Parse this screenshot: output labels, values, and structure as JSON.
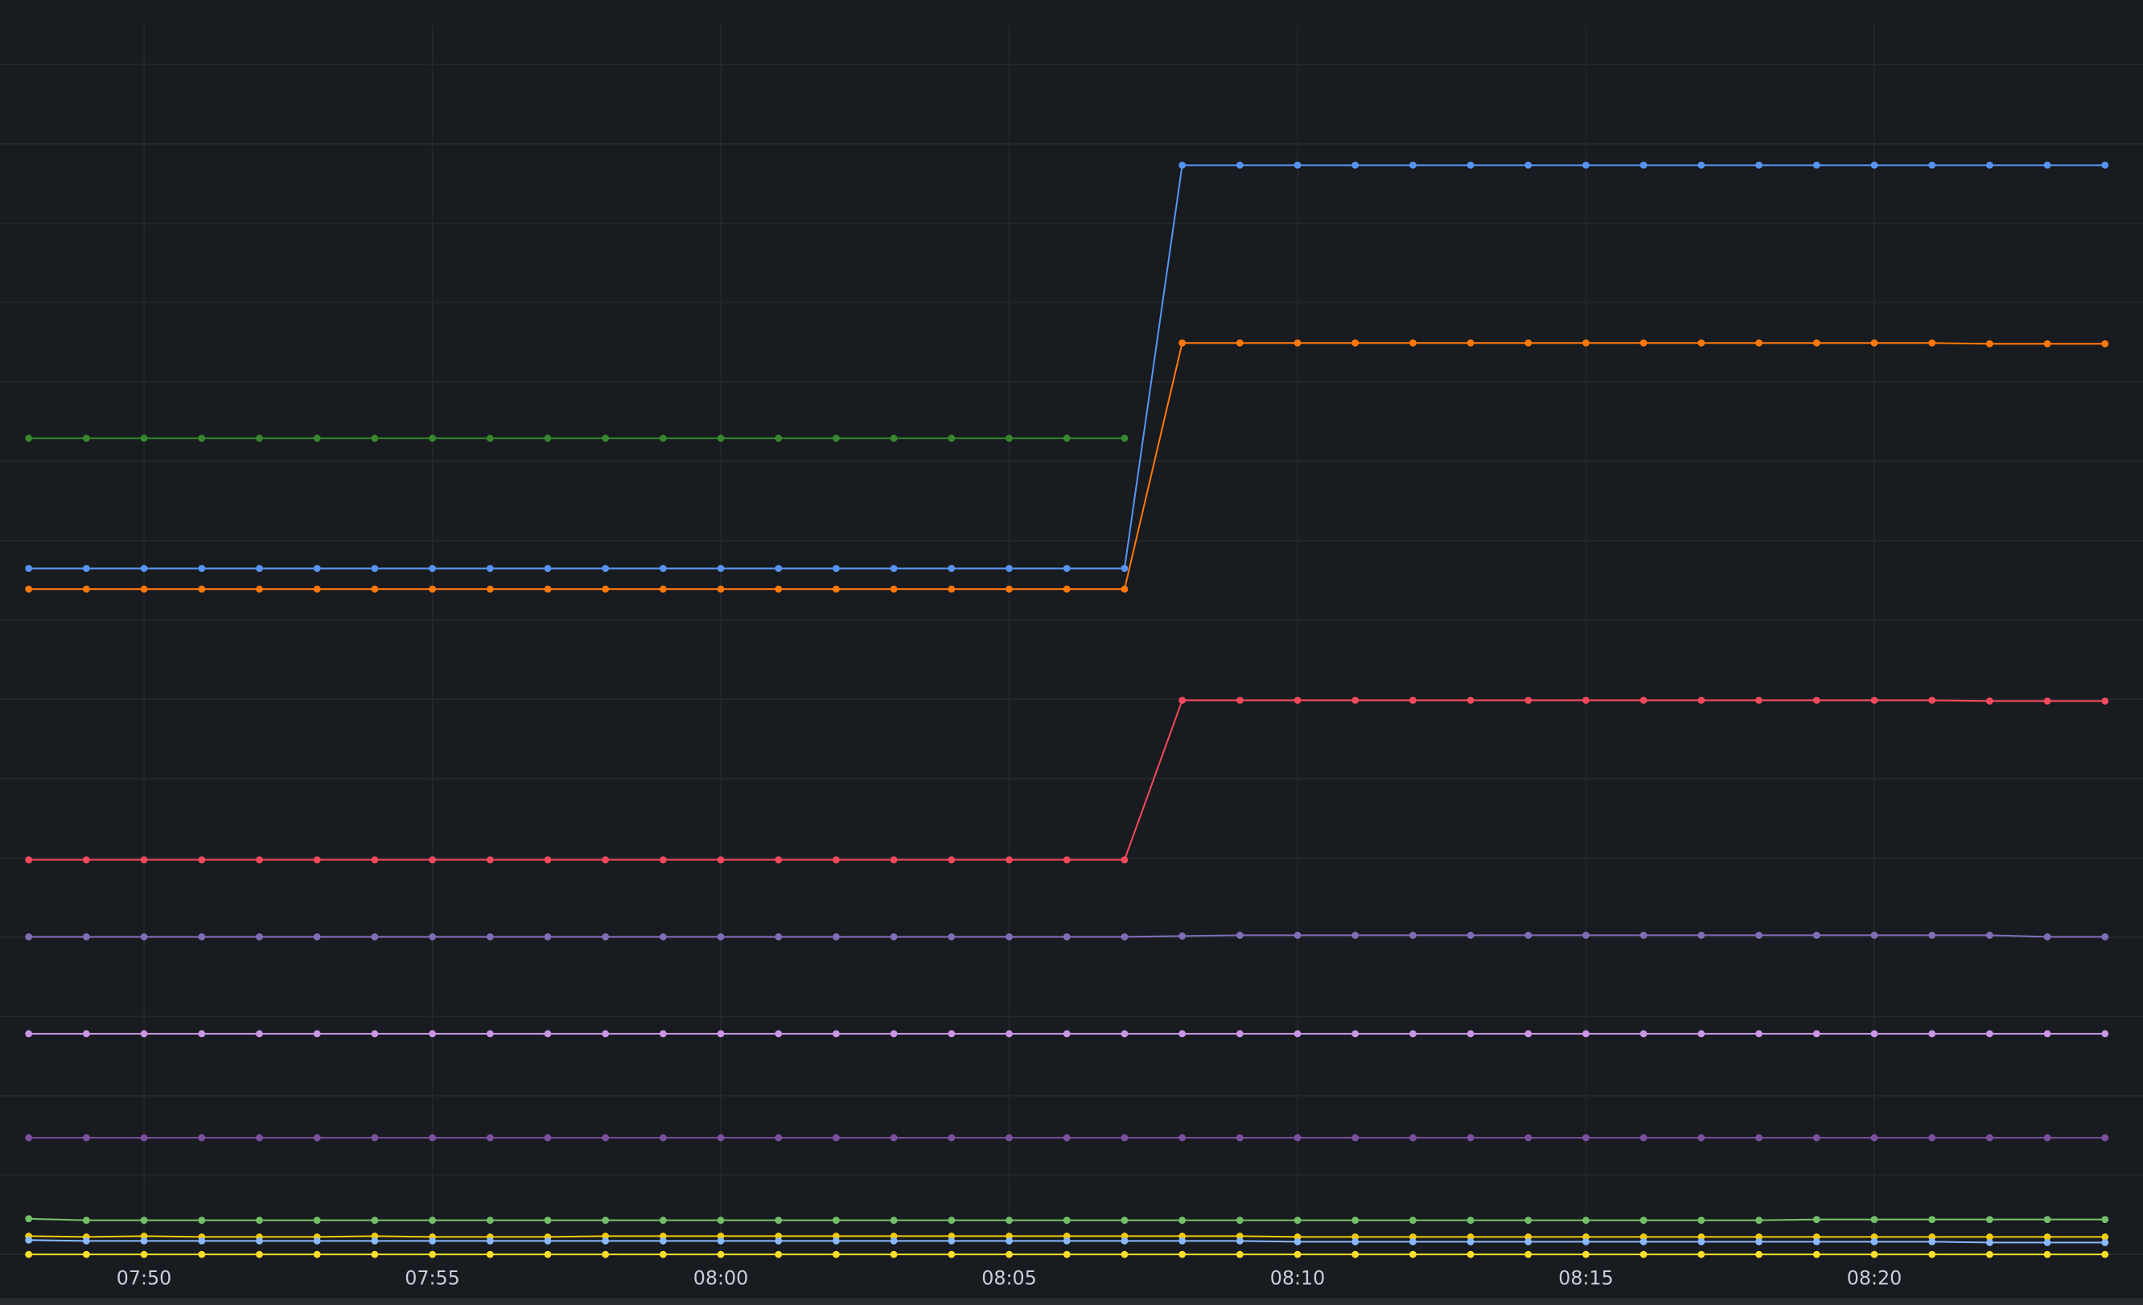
{
  "chart_data": {
    "type": "line",
    "title": "",
    "xlabel": "",
    "ylabel": "",
    "grid": true,
    "legend": "none",
    "ylim": [
      0,
      15.8
    ],
    "x": [
      "07:48",
      "07:49",
      "07:50",
      "07:51",
      "07:52",
      "07:53",
      "07:54",
      "07:55",
      "07:56",
      "07:57",
      "07:58",
      "07:59",
      "08:00",
      "08:01",
      "08:02",
      "08:03",
      "08:04",
      "08:05",
      "08:06",
      "08:07",
      "08:08",
      "08:09",
      "08:10",
      "08:11",
      "08:12",
      "08:13",
      "08:14",
      "08:15",
      "08:16",
      "08:17",
      "08:18",
      "08:19",
      "08:20",
      "08:21",
      "08:22",
      "08:23",
      "08:24"
    ],
    "x_ticks": [
      "07:50",
      "07:55",
      "08:00",
      "08:05",
      "08:10",
      "08:15",
      "08:20"
    ],
    "background": "#181b1f",
    "grid_color": "#24272d",
    "series": [
      {
        "color": "#37872d",
        "values": [
          10.28,
          10.28,
          10.28,
          10.28,
          10.28,
          10.28,
          10.28,
          10.28,
          10.28,
          10.28,
          10.28,
          10.28,
          10.28,
          10.28,
          10.28,
          10.28,
          10.28,
          10.28,
          10.28,
          10.28,
          null,
          null,
          null,
          null,
          null,
          null,
          null,
          null,
          null,
          null,
          null,
          null,
          null,
          null,
          null,
          null,
          null
        ]
      },
      {
        "color": "#5794f2",
        "values": [
          8.64,
          8.64,
          8.64,
          8.64,
          8.64,
          8.64,
          8.64,
          8.64,
          8.64,
          8.64,
          8.64,
          8.64,
          8.64,
          8.64,
          8.64,
          8.64,
          8.64,
          8.64,
          8.64,
          8.64,
          13.72,
          13.72,
          13.72,
          13.72,
          13.72,
          13.72,
          13.72,
          13.72,
          13.72,
          13.72,
          13.72,
          13.72,
          13.72,
          13.72,
          13.72,
          13.72,
          13.72
        ]
      },
      {
        "color": "#ff780a",
        "values": [
          8.38,
          8.38,
          8.38,
          8.38,
          8.38,
          8.38,
          8.38,
          8.38,
          8.38,
          8.38,
          8.38,
          8.38,
          8.38,
          8.38,
          8.38,
          8.38,
          8.38,
          8.38,
          8.38,
          8.38,
          11.48,
          11.48,
          11.48,
          11.48,
          11.48,
          11.48,
          11.48,
          11.48,
          11.48,
          11.48,
          11.48,
          11.48,
          11.48,
          11.48,
          11.47,
          11.47,
          11.47
        ]
      },
      {
        "color": "#f2495c",
        "values": [
          4.97,
          4.97,
          4.97,
          4.97,
          4.97,
          4.97,
          4.97,
          4.97,
          4.97,
          4.97,
          4.97,
          4.97,
          4.97,
          4.97,
          4.97,
          4.97,
          4.97,
          4.97,
          4.97,
          4.97,
          6.98,
          6.98,
          6.98,
          6.98,
          6.98,
          6.98,
          6.98,
          6.98,
          6.98,
          6.98,
          6.98,
          6.98,
          6.98,
          6.98,
          6.97,
          6.97,
          6.97
        ]
      },
      {
        "color": "#806eb7",
        "values": [
          4.0,
          4.0,
          4.0,
          4.0,
          4.0,
          4.0,
          4.0,
          4.0,
          4.0,
          4.0,
          4.0,
          4.0,
          4.0,
          4.0,
          4.0,
          4.0,
          4.0,
          4.0,
          4.0,
          4.0,
          4.01,
          4.02,
          4.02,
          4.02,
          4.02,
          4.02,
          4.02,
          4.02,
          4.02,
          4.02,
          4.02,
          4.02,
          4.02,
          4.02,
          4.02,
          4.0,
          4.0
        ]
      },
      {
        "color": "#ca95e5",
        "values": [
          2.78,
          2.78,
          2.78,
          2.78,
          2.78,
          2.78,
          2.78,
          2.78,
          2.78,
          2.78,
          2.78,
          2.78,
          2.78,
          2.78,
          2.78,
          2.78,
          2.78,
          2.78,
          2.78,
          2.78,
          2.78,
          2.78,
          2.78,
          2.78,
          2.78,
          2.78,
          2.78,
          2.78,
          2.78,
          2.78,
          2.78,
          2.78,
          2.78,
          2.78,
          2.78,
          2.78,
          2.78
        ]
      },
      {
        "color": "#7c4f9f",
        "values": [
          1.47,
          1.47,
          1.47,
          1.47,
          1.47,
          1.47,
          1.47,
          1.47,
          1.47,
          1.47,
          1.47,
          1.47,
          1.47,
          1.47,
          1.47,
          1.47,
          1.47,
          1.47,
          1.47,
          1.47,
          1.47,
          1.47,
          1.47,
          1.47,
          1.47,
          1.47,
          1.47,
          1.47,
          1.47,
          1.47,
          1.47,
          1.47,
          1.47,
          1.47,
          1.47,
          1.47,
          1.47
        ]
      },
      {
        "color": "#73bf69",
        "values": [
          0.45,
          0.43,
          0.43,
          0.43,
          0.43,
          0.43,
          0.43,
          0.43,
          0.43,
          0.43,
          0.43,
          0.43,
          0.43,
          0.43,
          0.43,
          0.43,
          0.43,
          0.43,
          0.43,
          0.43,
          0.43,
          0.43,
          0.43,
          0.43,
          0.43,
          0.43,
          0.43,
          0.43,
          0.43,
          0.43,
          0.43,
          0.44,
          0.44,
          0.44,
          0.44,
          0.44,
          0.44
        ]
      },
      {
        "color": "#f2cc0c",
        "values": [
          0.23,
          0.22,
          0.23,
          0.22,
          0.22,
          0.22,
          0.23,
          0.22,
          0.22,
          0.22,
          0.23,
          0.23,
          0.23,
          0.23,
          0.23,
          0.23,
          0.23,
          0.23,
          0.23,
          0.23,
          0.23,
          0.23,
          0.22,
          0.22,
          0.22,
          0.22,
          0.22,
          0.22,
          0.22,
          0.22,
          0.22,
          0.22,
          0.22,
          0.22,
          0.22,
          0.22,
          0.22
        ]
      },
      {
        "color": "#8ab8ff",
        "values": [
          0.18,
          0.17,
          0.17,
          0.17,
          0.17,
          0.17,
          0.17,
          0.17,
          0.17,
          0.17,
          0.17,
          0.17,
          0.17,
          0.17,
          0.17,
          0.17,
          0.17,
          0.17,
          0.17,
          0.17,
          0.17,
          0.17,
          0.16,
          0.16,
          0.16,
          0.16,
          0.16,
          0.16,
          0.16,
          0.16,
          0.16,
          0.16,
          0.16,
          0.16,
          0.15,
          0.15,
          0.15
        ]
      },
      {
        "color": "#fade2a",
        "values": [
          0,
          0,
          0,
          0,
          0,
          0,
          0,
          0,
          0,
          0,
          0,
          0,
          0,
          0,
          0,
          0,
          0,
          0,
          0,
          0,
          0,
          0,
          0,
          0,
          0,
          0,
          0,
          0,
          0,
          0,
          0,
          0,
          0,
          0,
          0,
          0,
          0
        ]
      }
    ]
  }
}
